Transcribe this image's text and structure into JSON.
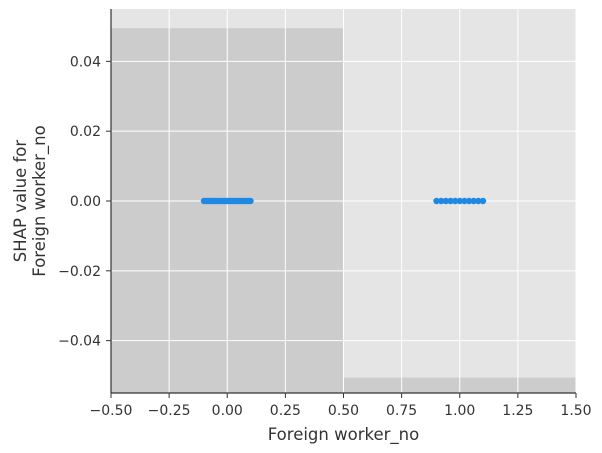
{
  "chart_data": {
    "type": "scatter",
    "xlabel": "Foreign worker_no",
    "ylabel_lines": [
      "SHAP value for",
      "Foreign worker_no"
    ],
    "xlim": [
      -0.5,
      1.5
    ],
    "ylim": [
      -0.055,
      0.055
    ],
    "x_ticks": [
      -0.5,
      -0.25,
      0.0,
      0.25,
      0.5,
      0.75,
      1.0,
      1.25,
      1.5
    ],
    "x_tick_labels": [
      "−0.50",
      "−0.25",
      "0.00",
      "0.25",
      "0.50",
      "0.75",
      "1.00",
      "1.25",
      "1.50"
    ],
    "y_ticks": [
      -0.04,
      -0.02,
      0.0,
      0.02,
      0.04
    ],
    "y_tick_labels": [
      "−0.04",
      "−0.02",
      "0.00",
      "0.02",
      "0.04"
    ],
    "grid": true,
    "histogram_bins": [
      {
        "x_range": [
          -0.5,
          0.5
        ],
        "relative_height": 0.95
      },
      {
        "x_range": [
          0.5,
          1.5
        ],
        "relative_height": 0.04
      }
    ],
    "series": [
      {
        "color": "#1e88e5",
        "x": [
          -0.1,
          -0.09,
          -0.08,
          -0.07,
          -0.06,
          -0.05,
          -0.04,
          -0.03,
          -0.02,
          -0.01,
          0.0,
          0.01,
          0.02,
          0.03,
          0.04,
          0.05,
          0.06,
          0.07,
          0.08,
          0.09,
          0.1,
          0.9,
          0.92,
          0.94,
          0.96,
          0.98,
          1.0,
          1.02,
          1.04,
          1.06,
          1.08,
          1.1
        ],
        "y": [
          0,
          0,
          0,
          0,
          0,
          0,
          0,
          0,
          0,
          0,
          0,
          0,
          0,
          0,
          0,
          0,
          0,
          0,
          0,
          0,
          0,
          0,
          0,
          0,
          0,
          0,
          0,
          0,
          0,
          0,
          0,
          0
        ]
      }
    ],
    "colors": {
      "plot_background": "#e5e5e5",
      "histogram": "#cccccc",
      "grid": "#ffffff",
      "spine": "#333333",
      "text": "#333333"
    }
  }
}
